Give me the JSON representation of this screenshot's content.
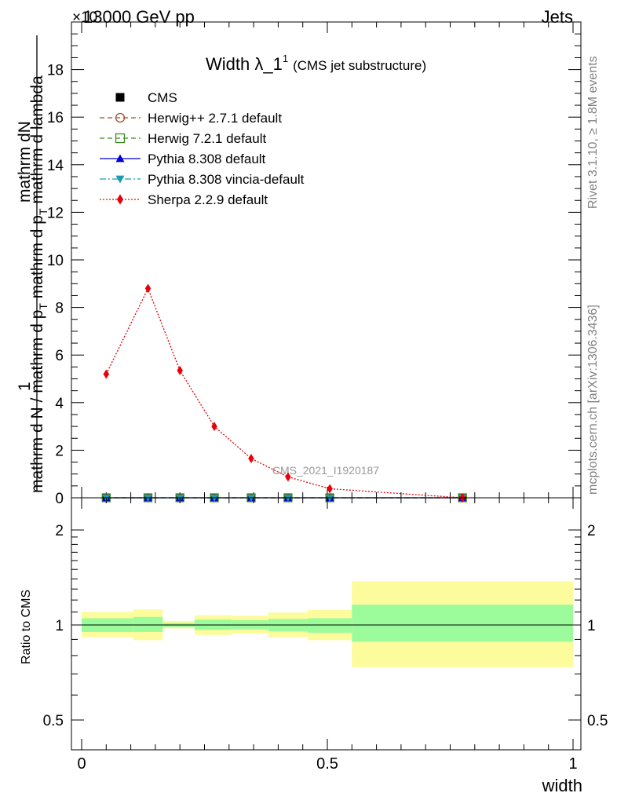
{
  "header": {
    "left_label": "13000 GeV pp",
    "right_label": "Jets",
    "exponent_label": "×10"
  },
  "side_labels": {
    "rivet": "Rivet 3.1.10, ≥ 1.8M events",
    "mcplots": "mcplots.cern.ch [arXiv:1306.3436]"
  },
  "chart_data": [
    {
      "type": "line",
      "title": "Width λ_1¹ (CMS jet substructure)",
      "title_main": "Width λ_1",
      "title_sup": "1",
      "title_sub": "(CMS jet substructure)",
      "watermark": "CMS_2021_I1920187",
      "ylabel_numerator": "mathrm dN",
      "ylabel_prefix_one": "1",
      "ylabel_main": "mathrm d N / mathrm d p",
      "ylabel_main_tail": "mathrm d p",
      "ylabel_sub": "T",
      "ylabel_middle": " mathrm d p",
      "ylabel_end": " mathrm d lambda",
      "ylim": [
        0,
        20
      ],
      "yticks": [
        0,
        2,
        4,
        6,
        8,
        10,
        12,
        14,
        16,
        18
      ],
      "ytick_labels": [
        "0",
        "2",
        "4",
        "6",
        "8",
        "10",
        "12",
        "14",
        "16",
        "18"
      ],
      "xlim": [
        0,
        1
      ],
      "x": [
        0.05,
        0.135,
        0.2,
        0.27,
        0.345,
        0.42,
        0.505,
        0.775
      ],
      "series": [
        {
          "name": "CMS",
          "color": "#000000",
          "marker": "square-filled",
          "line": "none",
          "values": [
            0.0,
            0.0,
            0.0,
            0.0,
            0.0,
            0.0,
            0.0,
            0.0
          ]
        },
        {
          "name": "Herwig++ 2.7.1 default",
          "color": "#a0522d",
          "marker": "circle-open",
          "line": "dashed",
          "values": [
            0.0,
            0.0,
            0.0,
            0.0,
            0.0,
            0.0,
            0.0,
            0.0
          ]
        },
        {
          "name": "Herwig 7.2.1 default",
          "color": "#3a8c1e",
          "marker": "square-open",
          "line": "dashed",
          "values": [
            0.0,
            0.0,
            0.0,
            0.0,
            0.0,
            0.0,
            0.0,
            0.0
          ]
        },
        {
          "name": "Pythia 8.308 default",
          "color": "#0000cc",
          "marker": "triangle-up",
          "line": "solid",
          "values": [
            0.0,
            0.0,
            0.0,
            0.0,
            0.0,
            0.0,
            0.0,
            0.0
          ]
        },
        {
          "name": "Pythia 8.308 vincia-default",
          "color": "#1a9bb0",
          "marker": "triangle-down",
          "line": "dashdot",
          "values": [
            0.0,
            0.0,
            0.0,
            0.0,
            0.0,
            0.0,
            0.0,
            0.0
          ]
        },
        {
          "name": "Sherpa 2.2.9 default",
          "color": "#e8000b",
          "marker": "diamond",
          "line": "dotted",
          "values": [
            5.2,
            8.8,
            5.35,
            3.0,
            1.65,
            0.88,
            0.38,
            0.0
          ]
        }
      ],
      "legend_position": "top-left",
      "grid": false
    },
    {
      "type": "area",
      "ylabel": "Ratio to CMS",
      "xlabel": "width",
      "xlim": [
        0,
        1
      ],
      "xticks": [
        0,
        0.5,
        1
      ],
      "xtick_labels": [
        "0",
        "0.5",
        "1"
      ],
      "ylim": [
        0.4,
        2.4
      ],
      "yscale": "log",
      "yticks": [
        0.5,
        1,
        2
      ],
      "ytick_labels": [
        "0.5",
        "1",
        "2"
      ],
      "bins": [
        {
          "low": 0.0,
          "high": 0.105,
          "inner": [
            0.95,
            1.05
          ],
          "outer": [
            0.915,
            1.1
          ]
        },
        {
          "low": 0.105,
          "high": 0.165,
          "inner": [
            0.95,
            1.06
          ],
          "outer": [
            0.895,
            1.12
          ]
        },
        {
          "low": 0.165,
          "high": 0.23,
          "inner": [
            0.985,
            1.015
          ],
          "outer": [
            0.975,
            1.03
          ]
        },
        {
          "low": 0.23,
          "high": 0.305,
          "inner": [
            0.965,
            1.04
          ],
          "outer": [
            0.93,
            1.075
          ]
        },
        {
          "low": 0.305,
          "high": 0.38,
          "inner": [
            0.97,
            1.035
          ],
          "outer": [
            0.94,
            1.07
          ]
        },
        {
          "low": 0.38,
          "high": 0.46,
          "inner": [
            0.955,
            1.045
          ],
          "outer": [
            0.915,
            1.095
          ]
        },
        {
          "low": 0.46,
          "high": 0.55,
          "inner": [
            0.945,
            1.05
          ],
          "outer": [
            0.895,
            1.115
          ]
        },
        {
          "low": 0.55,
          "high": 1.0,
          "inner": [
            0.885,
            1.16
          ],
          "outer": [
            0.735,
            1.375
          ]
        }
      ],
      "band_colors": {
        "inner": "#9cfc9c",
        "outer": "#fcfc9c"
      },
      "reference_line": 1
    }
  ]
}
